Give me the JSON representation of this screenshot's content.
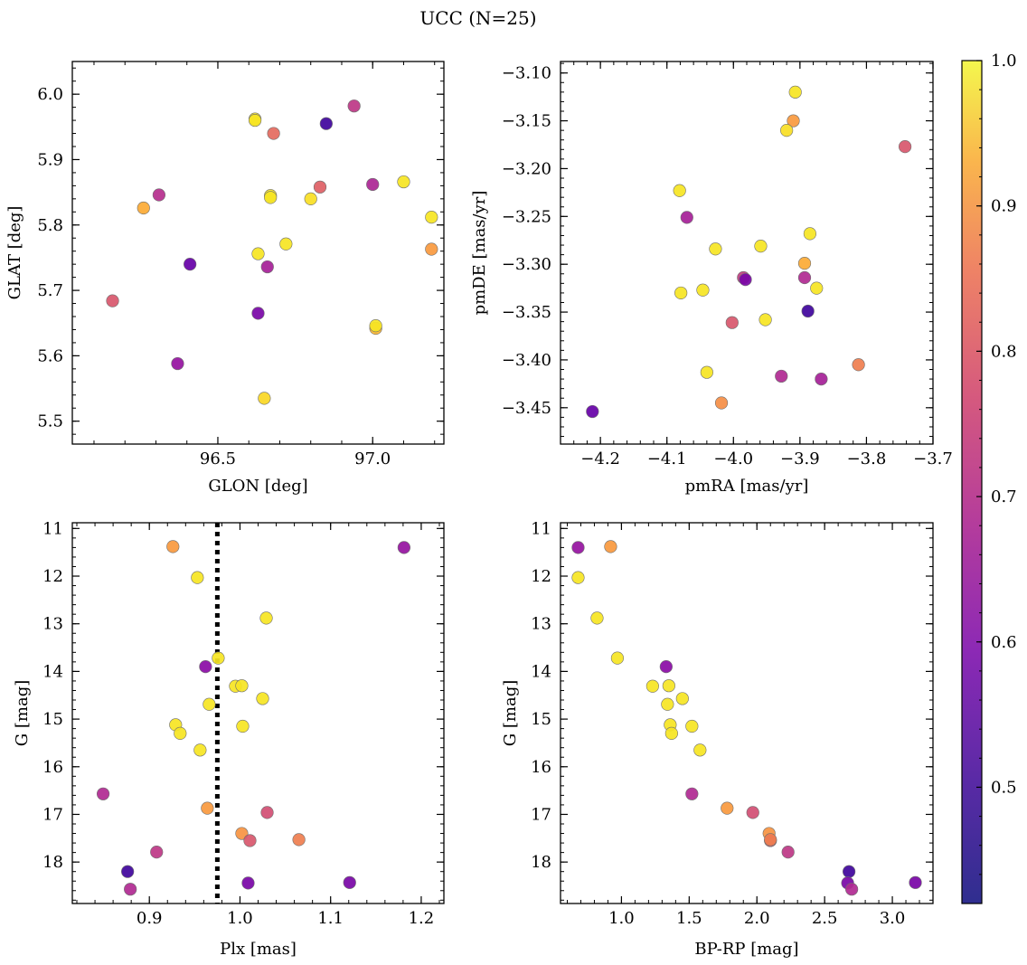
{
  "figure": {
    "title": "UCC (N=25)"
  },
  "colorbar": {
    "cmap": "plasma",
    "vmin": 0.42,
    "vmax": 1.0,
    "ticks": [
      0.5,
      0.6,
      0.7,
      0.8,
      0.9,
      1.0
    ],
    "tick_labels": [
      "0.5",
      "0.6",
      "0.7",
      "0.8",
      "0.9",
      "1.0"
    ]
  },
  "chart_data": [
    {
      "type": "scatter",
      "title": "",
      "xlabel": "GLON [deg]",
      "ylabel": "GLAT [deg]",
      "xlim": [
        96.03,
        97.23
      ],
      "ylim": [
        5.465,
        6.05
      ],
      "inverted_y": false,
      "xticks": [
        96.5,
        97.0
      ],
      "xtick_labels": [
        "96.5",
        "97.0"
      ],
      "yticks": [
        5.5,
        5.6,
        5.7,
        5.8,
        5.9,
        6.0
      ],
      "ytick_labels": [
        "5.5",
        "5.6",
        "5.7",
        "5.8",
        "5.9",
        "6.0"
      ],
      "points": [
        {
          "x": 96.62,
          "y": 5.962,
          "c": 0.97
        },
        {
          "x": 96.62,
          "y": 5.96,
          "c": 0.97
        },
        {
          "x": 96.68,
          "y": 5.94,
          "c": 0.76
        },
        {
          "x": 96.85,
          "y": 5.955,
          "c": 0.43
        },
        {
          "x": 96.94,
          "y": 5.982,
          "c": 0.65
        },
        {
          "x": 96.31,
          "y": 5.846,
          "c": 0.63
        },
        {
          "x": 96.26,
          "y": 5.826,
          "c": 0.88
        },
        {
          "x": 96.67,
          "y": 5.845,
          "c": 0.97
        },
        {
          "x": 96.67,
          "y": 5.842,
          "c": 0.97
        },
        {
          "x": 96.8,
          "y": 5.84,
          "c": 0.96
        },
        {
          "x": 96.83,
          "y": 5.858,
          "c": 0.74
        },
        {
          "x": 97.0,
          "y": 5.862,
          "c": 0.61
        },
        {
          "x": 97.1,
          "y": 5.866,
          "c": 0.97
        },
        {
          "x": 97.19,
          "y": 5.812,
          "c": 0.97
        },
        {
          "x": 97.19,
          "y": 5.763,
          "c": 0.85
        },
        {
          "x": 96.72,
          "y": 5.771,
          "c": 0.97
        },
        {
          "x": 96.63,
          "y": 5.756,
          "c": 0.97
        },
        {
          "x": 96.41,
          "y": 5.74,
          "c": 0.49
        },
        {
          "x": 96.66,
          "y": 5.736,
          "c": 0.6
        },
        {
          "x": 96.16,
          "y": 5.684,
          "c": 0.72
        },
        {
          "x": 96.63,
          "y": 5.665,
          "c": 0.52
        },
        {
          "x": 97.01,
          "y": 5.642,
          "c": 0.9
        },
        {
          "x": 97.01,
          "y": 5.646,
          "c": 0.97
        },
        {
          "x": 96.37,
          "y": 5.588,
          "c": 0.57
        },
        {
          "x": 96.65,
          "y": 5.535,
          "c": 0.95
        }
      ]
    },
    {
      "type": "scatter",
      "title": "",
      "xlabel": "pmRA [mas/yr]",
      "ylabel": "pmDE [mas/yr]",
      "xlim": [
        -4.26,
        -3.7
      ],
      "ylim": [
        -3.488,
        -3.088
      ],
      "inverted_y": false,
      "xticks": [
        -4.2,
        -4.1,
        -4.0,
        -3.9,
        -3.8,
        -3.7
      ],
      "xtick_labels": [
        "−4.2",
        "−4.1",
        "−4.0",
        "−3.9",
        "−3.8",
        "−3.7"
      ],
      "yticks": [
        -3.45,
        -3.4,
        -3.35,
        -3.3,
        -3.25,
        -3.2,
        -3.15,
        -3.1
      ],
      "ytick_labels": [
        "−3.45",
        "−3.40",
        "−3.35",
        "−3.30",
        "−3.25",
        "−3.20",
        "−3.15",
        "−3.10"
      ],
      "points": [
        {
          "x": -3.907,
          "y": -3.12,
          "c": 0.97
        },
        {
          "x": -3.91,
          "y": -3.15,
          "c": 0.85
        },
        {
          "x": -3.92,
          "y": -3.16,
          "c": 0.96
        },
        {
          "x": -3.742,
          "y": -3.177,
          "c": 0.72
        },
        {
          "x": -4.081,
          "y": -3.223,
          "c": 0.97
        },
        {
          "x": -4.07,
          "y": -3.251,
          "c": 0.6
        },
        {
          "x": -4.027,
          "y": -3.284,
          "c": 0.97
        },
        {
          "x": -3.959,
          "y": -3.281,
          "c": 0.97
        },
        {
          "x": -3.885,
          "y": -3.268,
          "c": 0.97
        },
        {
          "x": -3.893,
          "y": -3.299,
          "c": 0.88
        },
        {
          "x": -3.985,
          "y": -3.314,
          "c": 0.66
        },
        {
          "x": -3.982,
          "y": -3.316,
          "c": 0.52
        },
        {
          "x": -3.893,
          "y": -3.314,
          "c": 0.62
        },
        {
          "x": -3.875,
          "y": -3.325,
          "c": 0.97
        },
        {
          "x": -4.046,
          "y": -3.327,
          "c": 0.97
        },
        {
          "x": -4.079,
          "y": -3.33,
          "c": 0.97
        },
        {
          "x": -4.002,
          "y": -3.361,
          "c": 0.72
        },
        {
          "x": -3.952,
          "y": -3.358,
          "c": 0.97
        },
        {
          "x": -3.888,
          "y": -3.349,
          "c": 0.43
        },
        {
          "x": -4.04,
          "y": -3.413,
          "c": 0.97
        },
        {
          "x": -3.928,
          "y": -3.417,
          "c": 0.62
        },
        {
          "x": -3.868,
          "y": -3.42,
          "c": 0.6
        },
        {
          "x": -3.812,
          "y": -3.405,
          "c": 0.8
        },
        {
          "x": -4.018,
          "y": -3.445,
          "c": 0.83
        },
        {
          "x": -4.212,
          "y": -3.454,
          "c": 0.49
        }
      ]
    },
    {
      "type": "scatter",
      "title": "",
      "xlabel": "Plx [mas]",
      "ylabel": "G [mag]",
      "xlim": [
        0.815,
        1.225
      ],
      "ylim": [
        18.87,
        10.88
      ],
      "inverted_y": true,
      "reference_line": {
        "x": 0.975,
        "style": "dotted"
      },
      "xticks": [
        0.9,
        1.0,
        1.1,
        1.2
      ],
      "xtick_labels": [
        "0.9",
        "1.0",
        "1.1",
        "1.2"
      ],
      "yticks": [
        11,
        12,
        13,
        14,
        15,
        16,
        17,
        18
      ],
      "ytick_labels": [
        "11",
        "12",
        "13",
        "14",
        "15",
        "16",
        "17",
        "18"
      ],
      "points": [
        {
          "x": 0.926,
          "y": 11.38,
          "c": 0.85
        },
        {
          "x": 1.181,
          "y": 11.4,
          "c": 0.57
        },
        {
          "x": 0.953,
          "y": 12.03,
          "c": 0.97
        },
        {
          "x": 1.029,
          "y": 12.88,
          "c": 0.97
        },
        {
          "x": 0.976,
          "y": 13.72,
          "c": 0.97
        },
        {
          "x": 0.962,
          "y": 13.9,
          "c": 0.55
        },
        {
          "x": 0.995,
          "y": 14.31,
          "c": 0.97
        },
        {
          "x": 1.002,
          "y": 14.3,
          "c": 0.97
        },
        {
          "x": 1.025,
          "y": 14.57,
          "c": 0.97
        },
        {
          "x": 0.966,
          "y": 14.69,
          "c": 0.97
        },
        {
          "x": 0.929,
          "y": 15.12,
          "c": 0.97
        },
        {
          "x": 1.003,
          "y": 15.15,
          "c": 0.97
        },
        {
          "x": 0.934,
          "y": 15.3,
          "c": 0.97
        },
        {
          "x": 0.956,
          "y": 15.65,
          "c": 0.97
        },
        {
          "x": 0.849,
          "y": 16.57,
          "c": 0.62
        },
        {
          "x": 0.964,
          "y": 16.87,
          "c": 0.85
        },
        {
          "x": 1.03,
          "y": 16.96,
          "c": 0.7
        },
        {
          "x": 1.002,
          "y": 17.4,
          "c": 0.84
        },
        {
          "x": 1.011,
          "y": 17.55,
          "c": 0.72
        },
        {
          "x": 1.065,
          "y": 17.53,
          "c": 0.8
        },
        {
          "x": 0.908,
          "y": 17.79,
          "c": 0.65
        },
        {
          "x": 0.876,
          "y": 18.2,
          "c": 0.43
        },
        {
          "x": 1.009,
          "y": 18.44,
          "c": 0.52
        },
        {
          "x": 1.121,
          "y": 18.43,
          "c": 0.52
        },
        {
          "x": 0.879,
          "y": 18.57,
          "c": 0.62
        }
      ]
    },
    {
      "type": "scatter",
      "title": "",
      "xlabel": "BP-RP [mag]",
      "ylabel": "G [mag]",
      "xlim": [
        0.55,
        3.3
      ],
      "ylim": [
        18.87,
        10.88
      ],
      "inverted_y": true,
      "xticks": [
        1.0,
        1.5,
        2.0,
        2.5,
        3.0
      ],
      "xtick_labels": [
        "1.0",
        "1.5",
        "2.0",
        "2.5",
        "3.0"
      ],
      "yticks": [
        11,
        12,
        13,
        14,
        15,
        16,
        17,
        18
      ],
      "ytick_labels": [
        "11",
        "12",
        "13",
        "14",
        "15",
        "16",
        "17",
        "18"
      ],
      "points": [
        {
          "x": 0.68,
          "y": 11.4,
          "c": 0.57
        },
        {
          "x": 0.92,
          "y": 11.38,
          "c": 0.85
        },
        {
          "x": 0.68,
          "y": 12.03,
          "c": 0.97
        },
        {
          "x": 0.82,
          "y": 12.88,
          "c": 0.97
        },
        {
          "x": 0.97,
          "y": 13.72,
          "c": 0.97
        },
        {
          "x": 1.33,
          "y": 13.9,
          "c": 0.55
        },
        {
          "x": 1.23,
          "y": 14.31,
          "c": 0.97
        },
        {
          "x": 1.35,
          "y": 14.3,
          "c": 0.97
        },
        {
          "x": 1.45,
          "y": 14.57,
          "c": 0.97
        },
        {
          "x": 1.34,
          "y": 14.69,
          "c": 0.97
        },
        {
          "x": 1.36,
          "y": 15.12,
          "c": 0.97
        },
        {
          "x": 1.52,
          "y": 15.15,
          "c": 0.97
        },
        {
          "x": 1.37,
          "y": 15.3,
          "c": 0.97
        },
        {
          "x": 1.58,
          "y": 15.65,
          "c": 0.97
        },
        {
          "x": 1.52,
          "y": 16.57,
          "c": 0.62
        },
        {
          "x": 1.78,
          "y": 16.87,
          "c": 0.85
        },
        {
          "x": 1.97,
          "y": 16.96,
          "c": 0.7
        },
        {
          "x": 2.09,
          "y": 17.4,
          "c": 0.84
        },
        {
          "x": 2.1,
          "y": 17.55,
          "c": 0.72
        },
        {
          "x": 2.1,
          "y": 17.53,
          "c": 0.8
        },
        {
          "x": 2.23,
          "y": 17.79,
          "c": 0.65
        },
        {
          "x": 2.68,
          "y": 18.2,
          "c": 0.43
        },
        {
          "x": 2.67,
          "y": 18.44,
          "c": 0.52
        },
        {
          "x": 3.17,
          "y": 18.43,
          "c": 0.52
        },
        {
          "x": 2.7,
          "y": 18.57,
          "c": 0.62
        }
      ]
    }
  ]
}
